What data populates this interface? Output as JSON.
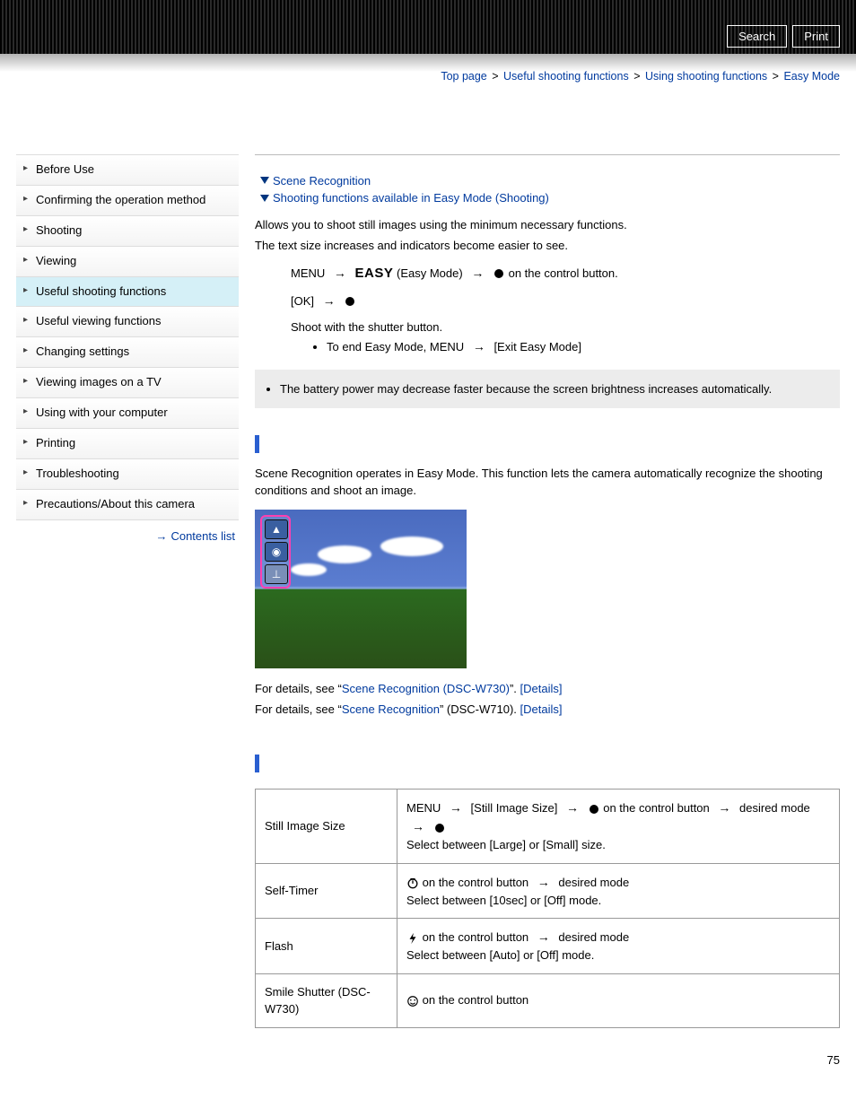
{
  "header": {
    "search": "Search",
    "print": "Print"
  },
  "breadcrumb": {
    "items": [
      "Top page",
      "Useful shooting functions",
      "Using shooting functions",
      "Easy Mode"
    ],
    "sep": ">"
  },
  "sidebar": {
    "items": [
      "Before Use",
      "Confirming the operation method",
      "Shooting",
      "Viewing",
      "Useful shooting functions",
      "Useful viewing functions",
      "Changing settings",
      "Viewing images on a TV",
      "Using with your computer",
      "Printing",
      "Troubleshooting",
      "Precautions/About this camera"
    ],
    "active_index": 4,
    "contents_link": "Contents list"
  },
  "anchors": {
    "a1": "Scene Recognition",
    "a2": "Shooting functions available in Easy Mode (Shooting)"
  },
  "intro": {
    "p1": "Allows you to shoot still images using the minimum necessary functions.",
    "p2": "The text size increases and indicators become easier to see."
  },
  "steps": {
    "menu": "MENU",
    "easy_word": "EASY",
    "easy_label": "(Easy Mode)",
    "on_control": "on the control button.",
    "ok": "[OK]",
    "shoot": "Shoot with the shutter button.",
    "end": "To end Easy Mode, MENU",
    "exit": "[Exit Easy Mode]"
  },
  "note": "The battery power may decrease faster because the screen brightness increases automatically.",
  "scene": {
    "p1": "Scene Recognition operates in Easy Mode. This function lets the camera automatically recognize the shooting conditions and shoot an image.",
    "d1_pre": "For details, see “",
    "d1_link": "Scene Recognition (DSC-W730)",
    "d1_post": "”. ",
    "d1_details": "[Details]",
    "d2_pre": "For details, see “",
    "d2_link": "Scene Recognition",
    "d2_post": "” (DSC-W710). ",
    "d2_details": "[Details]"
  },
  "table": {
    "r1c1": "Still Image Size",
    "r1_menu": "MENU",
    "r1_still": "[Still Image Size]",
    "r1_on": "on the control button",
    "r1_desired": "desired mode",
    "r1_sel": "Select between [Large] or [Small] size.",
    "r2c1": "Self-Timer",
    "r2_on": "on the control button",
    "r2_desired": "desired mode",
    "r2_sel": "Select between [10sec] or [Off] mode.",
    "r3c1": "Flash",
    "r3_on": "on the control button",
    "r3_desired": "desired mode",
    "r3_sel": "Select between [Auto] or [Off] mode.",
    "r4c1": "Smile Shutter (DSC-W730)",
    "r4_on": "on the control button"
  },
  "page_number": "75"
}
